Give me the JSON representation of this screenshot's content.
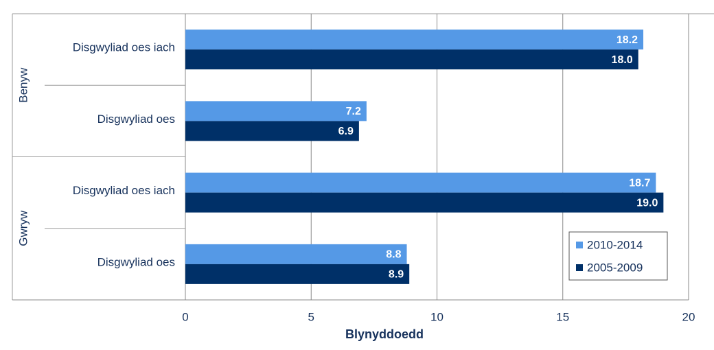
{
  "chart_data": {
    "type": "hbar",
    "xlabel": "Blynyddoedd",
    "groups": [
      {
        "label": "Benyw",
        "categories": [
          "Disgwyliad oes iach",
          "Disgwyliad oes"
        ]
      },
      {
        "label": "Gwryw",
        "categories": [
          "Disgwyliad oes iach",
          "Disgwyliad oes"
        ]
      }
    ],
    "series": [
      {
        "name": "2010-2014",
        "color": "#5599e6",
        "values": [
          18.2,
          7.2,
          18.7,
          8.8
        ],
        "value_labels": [
          "18.2",
          "7.2",
          "18.7",
          "8.8"
        ]
      },
      {
        "name": "2005-2009",
        "color": "#003068",
        "values": [
          18.0,
          6.9,
          19.0,
          8.9
        ],
        "value_labels": [
          "18.0",
          "6.9",
          "19.0",
          "8.9"
        ]
      }
    ],
    "xlim": [
      0,
      20
    ],
    "xticks": [
      0,
      5,
      10,
      15,
      20
    ],
    "grid": true,
    "legend": "bottom-right"
  }
}
